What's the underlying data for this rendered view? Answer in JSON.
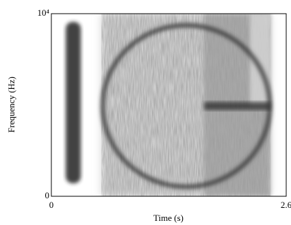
{
  "chart_data": {
    "type": "spectrogram",
    "x_label": "Time (s)",
    "y_label": "Frequency (Hz)",
    "xlim": [
      0,
      2.6
    ],
    "xticks": [
      0,
      2.6
    ],
    "ylim": [
      0,
      10000
    ],
    "yticks": [
      0,
      {
        "value": 10000,
        "label": "10⁴"
      }
    ]
  }
}
